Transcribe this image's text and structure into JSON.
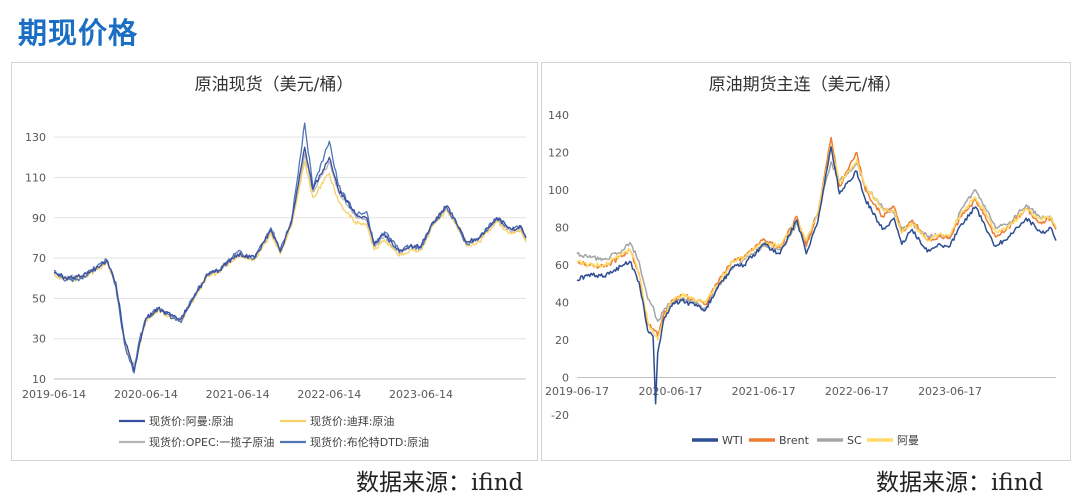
{
  "page_title": "期现价格",
  "source_left": "数据来源：ifind",
  "source_right": "数据来源：ifind",
  "chart_data": [
    {
      "type": "line",
      "title": "原油现货（美元/桶）",
      "xlabel": "",
      "ylabel": "",
      "x_ticks": [
        "2019-06-14",
        "2020-06-14",
        "2021-06-14",
        "2022-06-14",
        "2023-06-14"
      ],
      "y_ticks": [
        10,
        30,
        50,
        70,
        90,
        110,
        130
      ],
      "ylim": [
        10,
        140
      ],
      "grid": true,
      "legend_position": "bottom",
      "series": [
        {
          "name": "现货价:阿曼:原油",
          "color": "#3b4fa0",
          "dates": [
            "2019-06-14",
            "2019-08-01",
            "2019-10-01",
            "2019-12-15",
            "2020-01-10",
            "2020-02-15",
            "2020-03-20",
            "2020-04-10",
            "2020-04-28",
            "2020-05-20",
            "2020-06-14",
            "2020-08-01",
            "2020-10-01",
            "2020-11-01",
            "2020-12-15",
            "2021-02-15",
            "2021-04-01",
            "2021-06-14",
            "2021-08-20",
            "2021-10-25",
            "2021-12-01",
            "2022-01-15",
            "2022-03-08",
            "2022-04-10",
            "2022-06-14",
            "2022-07-20",
            "2022-09-25",
            "2022-11-10",
            "2022-12-10",
            "2023-01-20",
            "2023-03-20",
            "2023-05-01",
            "2023-06-14",
            "2023-08-01",
            "2023-09-25",
            "2023-11-15",
            "2023-12-12",
            "2024-02-01",
            "2024-04-10",
            "2024-06-10",
            "2024-07-15",
            "2024-08-05"
          ],
          "values": [
            63,
            60,
            61,
            66,
            69,
            58,
            30,
            22,
            14,
            28,
            40,
            45,
            41,
            40,
            49,
            62,
            64,
            72,
            70,
            84,
            73,
            88,
            125,
            104,
            120,
            104,
            92,
            90,
            77,
            82,
            73,
            76,
            76,
            88,
            96,
            85,
            78,
            80,
            90,
            84,
            86,
            80
          ]
        },
        {
          "name": "现货价:迪拜:原油",
          "color": "#f7d068",
          "dates": [
            "2019-06-14",
            "2019-08-01",
            "2019-10-01",
            "2019-12-15",
            "2020-01-10",
            "2020-02-15",
            "2020-03-20",
            "2020-04-10",
            "2020-04-28",
            "2020-05-20",
            "2020-06-14",
            "2020-08-01",
            "2020-10-01",
            "2020-11-01",
            "2020-12-15",
            "2021-02-15",
            "2021-04-01",
            "2021-06-14",
            "2021-08-20",
            "2021-10-25",
            "2021-12-01",
            "2022-01-15",
            "2022-03-08",
            "2022-04-10",
            "2022-06-14",
            "2022-07-20",
            "2022-09-25",
            "2022-11-10",
            "2022-12-10",
            "2023-01-20",
            "2023-03-20",
            "2023-05-01",
            "2023-06-14",
            "2023-08-01",
            "2023-09-25",
            "2023-11-15",
            "2023-12-12",
            "2024-02-01",
            "2024-04-10",
            "2024-06-10",
            "2024-07-15",
            "2024-08-05"
          ],
          "values": [
            62,
            59,
            60,
            65,
            68,
            57,
            29,
            21,
            15,
            27,
            39,
            44,
            40,
            39,
            48,
            61,
            63,
            71,
            69,
            82,
            72,
            86,
            118,
            100,
            112,
            98,
            88,
            86,
            74,
            79,
            71,
            74,
            74,
            86,
            94,
            83,
            76,
            78,
            88,
            82,
            84,
            78
          ]
        },
        {
          "name": "现货价:OPEC:一揽子原油",
          "color": "#b5b5b5",
          "dates": [
            "2019-06-14",
            "2019-08-01",
            "2019-10-01",
            "2019-12-15",
            "2020-01-10",
            "2020-02-15",
            "2020-03-20",
            "2020-04-10",
            "2020-04-28",
            "2020-05-20",
            "2020-06-14",
            "2020-08-01",
            "2020-10-01",
            "2020-11-01",
            "2020-12-15",
            "2021-02-15",
            "2021-04-01",
            "2021-06-14",
            "2021-08-20",
            "2021-10-25",
            "2021-12-01",
            "2022-01-15",
            "2022-03-08",
            "2022-04-10",
            "2022-06-14",
            "2022-07-20",
            "2022-09-25",
            "2022-11-10",
            "2022-12-10",
            "2023-01-20",
            "2023-03-20",
            "2023-05-01",
            "2023-06-14",
            "2023-08-01",
            "2023-09-25",
            "2023-11-15",
            "2023-12-12",
            "2024-02-01",
            "2024-04-10",
            "2024-06-10",
            "2024-07-15",
            "2024-08-05"
          ],
          "values": [
            62,
            60,
            61,
            66,
            68,
            57,
            30,
            20,
            17,
            28,
            39,
            45,
            41,
            40,
            49,
            62,
            64,
            72,
            70,
            83,
            73,
            87,
            122,
            103,
            118,
            103,
            91,
            89,
            76,
            81,
            72,
            76,
            75,
            88,
            95,
            84,
            78,
            80,
            89,
            83,
            85,
            79
          ]
        },
        {
          "name": "现货价:布伦特DTD:原油",
          "color": "#4f75b5",
          "dates": [
            "2019-06-14",
            "2019-08-01",
            "2019-10-01",
            "2019-12-15",
            "2020-01-10",
            "2020-02-15",
            "2020-03-20",
            "2020-04-10",
            "2020-04-28",
            "2020-05-20",
            "2020-06-14",
            "2020-08-01",
            "2020-10-01",
            "2020-11-01",
            "2020-12-15",
            "2021-02-15",
            "2021-04-01",
            "2021-06-14",
            "2021-08-20",
            "2021-10-25",
            "2021-12-01",
            "2022-01-15",
            "2022-03-08",
            "2022-04-10",
            "2022-06-14",
            "2022-07-20",
            "2022-09-25",
            "2022-11-10",
            "2022-12-10",
            "2023-01-20",
            "2023-03-20",
            "2023-05-01",
            "2023-06-14",
            "2023-08-01",
            "2023-09-25",
            "2023-11-15",
            "2023-12-12",
            "2024-02-01",
            "2024-04-10",
            "2024-06-10",
            "2024-07-15",
            "2024-08-05"
          ],
          "values": [
            64,
            59,
            60,
            67,
            69,
            56,
            28,
            19,
            13,
            30,
            40,
            45,
            40,
            38,
            50,
            62,
            64,
            73,
            70,
            85,
            74,
            89,
            137,
            105,
            128,
            106,
            92,
            93,
            76,
            83,
            74,
            76,
            75,
            87,
            95,
            84,
            77,
            80,
            90,
            84,
            86,
            80
          ]
        }
      ]
    },
    {
      "type": "line",
      "title": "原油期货主连（美元/桶）",
      "xlabel": "",
      "ylabel": "",
      "x_ticks": [
        "2019-06-17",
        "2020-06-17",
        "2021-06-17",
        "2022-06-17",
        "2023-06-17"
      ],
      "y_ticks": [
        -20,
        0,
        20,
        40,
        60,
        80,
        100,
        120,
        140
      ],
      "ylim": [
        -20,
        140
      ],
      "grid": false,
      "legend_position": "bottom",
      "series": [
        {
          "name": "WTI",
          "color": "#2e4e93",
          "dates": [
            "2019-06-17",
            "2019-08-01",
            "2019-10-01",
            "2019-12-15",
            "2020-01-10",
            "2020-02-15",
            "2020-03-20",
            "2020-04-10",
            "2020-04-20",
            "2020-04-28",
            "2020-05-20",
            "2020-06-17",
            "2020-08-01",
            "2020-10-01",
            "2020-11-01",
            "2020-12-15",
            "2021-02-15",
            "2021-04-01",
            "2021-06-17",
            "2021-08-20",
            "2021-10-25",
            "2021-12-01",
            "2022-01-15",
            "2022-03-08",
            "2022-04-10",
            "2022-06-17",
            "2022-07-20",
            "2022-09-25",
            "2022-11-10",
            "2022-12-10",
            "2023-01-20",
            "2023-03-20",
            "2023-05-01",
            "2023-06-17",
            "2023-08-01",
            "2023-09-25",
            "2023-11-15",
            "2023-12-12",
            "2024-02-01",
            "2024-04-10",
            "2024-06-10",
            "2024-07-15",
            "2024-08-05"
          ],
          "values": [
            52,
            55,
            54,
            60,
            62,
            51,
            25,
            22,
            -14,
            13,
            30,
            38,
            41,
            38,
            36,
            47,
            59,
            60,
            71,
            66,
            84,
            66,
            83,
            123,
            98,
            110,
            95,
            79,
            85,
            71,
            79,
            67,
            71,
            70,
            82,
            91,
            77,
            70,
            75,
            85,
            77,
            80,
            73
          ]
        },
        {
          "name": "Brent",
          "color": "#ed7d31",
          "dates": [
            "2019-06-17",
            "2019-08-01",
            "2019-10-01",
            "2019-12-15",
            "2020-01-10",
            "2020-02-15",
            "2020-03-20",
            "2020-04-10",
            "2020-04-20",
            "2020-04-28",
            "2020-05-20",
            "2020-06-17",
            "2020-08-01",
            "2020-10-01",
            "2020-11-01",
            "2020-12-15",
            "2021-02-15",
            "2021-04-01",
            "2021-06-17",
            "2021-08-20",
            "2021-10-25",
            "2021-12-01",
            "2022-01-15",
            "2022-03-08",
            "2022-04-10",
            "2022-06-17",
            "2022-07-20",
            "2022-09-25",
            "2022-11-10",
            "2022-12-10",
            "2023-01-20",
            "2023-03-20",
            "2023-05-01",
            "2023-06-17",
            "2023-08-01",
            "2023-09-25",
            "2023-11-15",
            "2023-12-12",
            "2024-02-01",
            "2024-04-10",
            "2024-06-10",
            "2024-07-15",
            "2024-08-05"
          ],
          "values": [
            62,
            60,
            59,
            65,
            68,
            55,
            28,
            26,
            25,
            22,
            33,
            40,
            44,
            41,
            39,
            50,
            62,
            64,
            74,
            69,
            86,
            70,
            87,
            128,
            102,
            120,
            100,
            86,
            91,
            77,
            84,
            73,
            75,
            75,
            86,
            95,
            82,
            75,
            80,
            90,
            82,
            85,
            79
          ]
        },
        {
          "name": "SC",
          "color": "#a5a5a5",
          "dates": [
            "2019-06-17",
            "2019-08-01",
            "2019-10-01",
            "2019-12-15",
            "2020-01-10",
            "2020-02-15",
            "2020-03-20",
            "2020-04-10",
            "2020-04-20",
            "2020-04-28",
            "2020-05-20",
            "2020-06-17",
            "2020-08-01",
            "2020-10-01",
            "2020-11-01",
            "2020-12-15",
            "2021-02-15",
            "2021-04-01",
            "2021-06-17",
            "2021-08-20",
            "2021-10-25",
            "2021-12-01",
            "2022-01-15",
            "2022-03-08",
            "2022-04-10",
            "2022-06-17",
            "2022-07-20",
            "2022-09-25",
            "2022-11-10",
            "2022-12-10",
            "2023-01-20",
            "2023-03-20",
            "2023-05-01",
            "2023-06-17",
            "2023-08-01",
            "2023-09-25",
            "2023-11-15",
            "2023-12-12",
            "2024-02-01",
            "2024-04-10",
            "2024-06-10",
            "2024-07-15",
            "2024-08-05"
          ],
          "values": [
            66,
            64,
            63,
            68,
            72,
            62,
            42,
            38,
            32,
            30,
            35,
            40,
            42,
            40,
            36,
            48,
            58,
            63,
            70,
            68,
            82,
            72,
            88,
            115,
            105,
            114,
            102,
            91,
            88,
            80,
            82,
            75,
            76,
            74,
            90,
            100,
            88,
            80,
            82,
            92,
            85,
            86,
            80
          ]
        },
        {
          "name": "阿曼",
          "color": "#ffd966",
          "dates": [
            "2019-06-17",
            "2019-08-01",
            "2019-10-01",
            "2019-12-15",
            "2020-01-10",
            "2020-02-15",
            "2020-03-20",
            "2020-04-10",
            "2020-04-20",
            "2020-04-28",
            "2020-05-20",
            "2020-06-17",
            "2020-08-01",
            "2020-10-01",
            "2020-11-01",
            "2020-12-15",
            "2021-02-15",
            "2021-04-01",
            "2021-06-17",
            "2021-08-20",
            "2021-10-25",
            "2021-12-01",
            "2022-01-15",
            "2022-03-08",
            "2022-04-10",
            "2022-06-17",
            "2022-07-20",
            "2022-09-25",
            "2022-11-10",
            "2022-12-10",
            "2023-01-20",
            "2023-03-20",
            "2023-05-01",
            "2023-06-17",
            "2023-08-01",
            "2023-09-25",
            "2023-11-15",
            "2023-12-12",
            "2024-02-01",
            "2024-04-10",
            "2024-06-10",
            "2024-07-15",
            "2024-08-05"
          ],
          "values": [
            62,
            60,
            60,
            66,
            68,
            56,
            30,
            24,
            22,
            20,
            30,
            40,
            44,
            41,
            40,
            49,
            62,
            64,
            72,
            70,
            84,
            73,
            88,
            124,
            104,
            116,
            102,
            90,
            89,
            77,
            82,
            73,
            76,
            76,
            88,
            96,
            85,
            78,
            80,
            90,
            84,
            86,
            80
          ]
        }
      ]
    }
  ]
}
